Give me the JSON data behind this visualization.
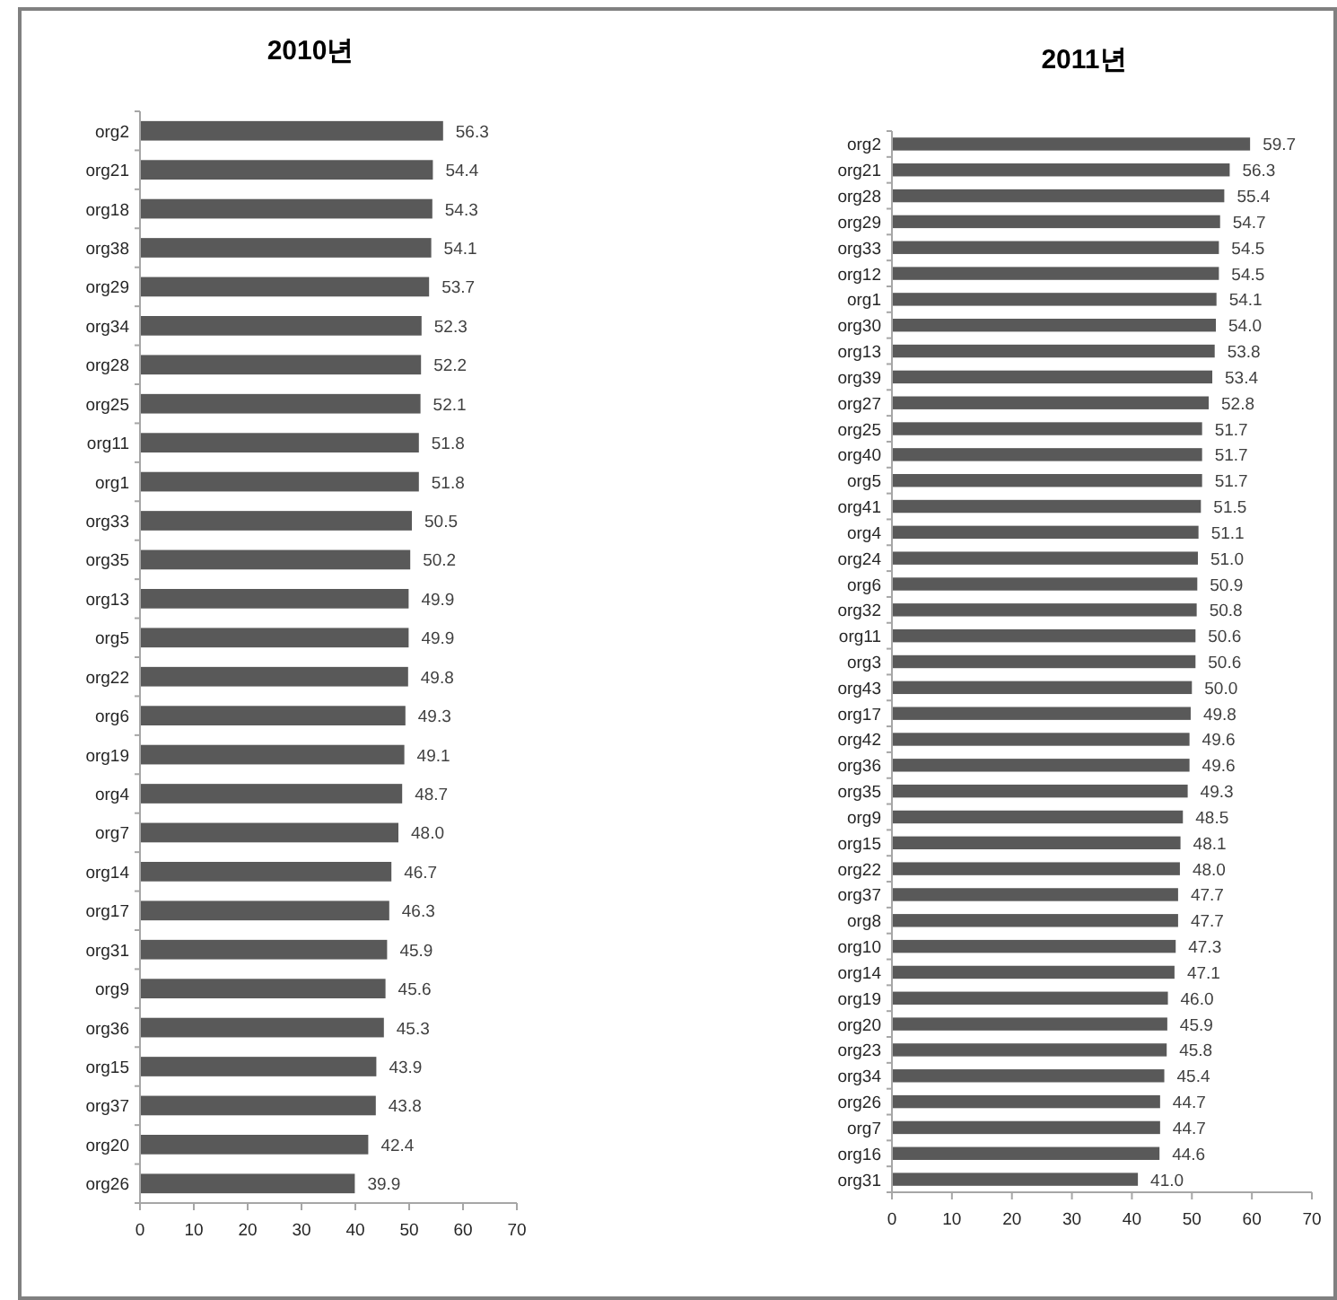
{
  "chart_data": [
    {
      "type": "bar",
      "orientation": "horizontal",
      "title": "2010년",
      "color": "#595959",
      "xlim": [
        0,
        70
      ],
      "xticks": [
        0,
        10,
        20,
        30,
        40,
        50,
        60,
        70
      ],
      "grid": false,
      "categories": [
        "org2",
        "org21",
        "org18",
        "org38",
        "org29",
        "org34",
        "org28",
        "org25",
        "org11",
        "org1",
        "org33",
        "org35",
        "org13",
        "org5",
        "org22",
        "org6",
        "org19",
        "org4",
        "org7",
        "org14",
        "org17",
        "org31",
        "org9",
        "org36",
        "org15",
        "org37",
        "org20",
        "org26"
      ],
      "values": [
        56.3,
        54.4,
        54.3,
        54.1,
        53.7,
        52.3,
        52.2,
        52.1,
        51.8,
        51.8,
        50.5,
        50.2,
        49.9,
        49.9,
        49.8,
        49.3,
        49.1,
        48.7,
        48.0,
        46.7,
        46.3,
        45.9,
        45.6,
        45.3,
        43.9,
        43.8,
        42.4,
        39.9
      ],
      "value_labels": [
        "56.3",
        "54.4",
        "54.3",
        "54.1",
        "53.7",
        "52.3",
        "52.2",
        "52.1",
        "51.8",
        "51.8",
        "50.5",
        "50.2",
        "49.9",
        "49.9",
        "49.8",
        "49.3",
        "49.1",
        "48.7",
        "48.0",
        "46.7",
        "46.3",
        "45.9",
        "45.6",
        "45.3",
        "43.9",
        "43.8",
        "42.4",
        "39.9"
      ]
    },
    {
      "type": "bar",
      "orientation": "horizontal",
      "title": "2011년",
      "color": "#595959",
      "xlim": [
        0,
        70
      ],
      "xticks": [
        0,
        10,
        20,
        30,
        40,
        50,
        60,
        70
      ],
      "grid": false,
      "categories": [
        "org2",
        "org21",
        "org28",
        "org29",
        "org33",
        "org12",
        "org1",
        "org30",
        "org13",
        "org39",
        "org27",
        "org25",
        "org40",
        "org5",
        "org41",
        "org4",
        "org24",
        "org6",
        "org32",
        "org11",
        "org3",
        "org43",
        "org17",
        "org42",
        "org36",
        "org35",
        "org9",
        "org15",
        "org22",
        "org37",
        "org8",
        "org10",
        "org14",
        "org19",
        "org20",
        "org23",
        "org34",
        "org26",
        "org7",
        "org16",
        "org31"
      ],
      "values": [
        59.7,
        56.3,
        55.4,
        54.7,
        54.5,
        54.5,
        54.1,
        54.0,
        53.8,
        53.4,
        52.8,
        51.7,
        51.7,
        51.7,
        51.5,
        51.1,
        51.0,
        50.9,
        50.8,
        50.6,
        50.6,
        50.0,
        49.8,
        49.6,
        49.6,
        49.3,
        48.5,
        48.1,
        48.0,
        47.7,
        47.7,
        47.3,
        47.1,
        46.0,
        45.9,
        45.8,
        45.4,
        44.7,
        44.7,
        44.6,
        41.0
      ],
      "value_labels": [
        "59.7",
        "56.3",
        "55.4",
        "54.7",
        "54.5",
        "54.5",
        "54.1",
        "54.0",
        "53.8",
        "53.4",
        "52.8",
        "51.7",
        "51.7",
        "51.7",
        "51.5",
        "51.1",
        "51.0",
        "50.9",
        "50.8",
        "50.6",
        "50.6",
        "50.0",
        "49.8",
        "49.6",
        "49.6",
        "49.3",
        "48.5",
        "48.1",
        "48.0",
        "47.7",
        "47.7",
        "47.3",
        "47.1",
        "46.0",
        "45.9",
        "45.8",
        "45.4",
        "44.7",
        "44.7",
        "44.6",
        "41.0"
      ]
    }
  ]
}
